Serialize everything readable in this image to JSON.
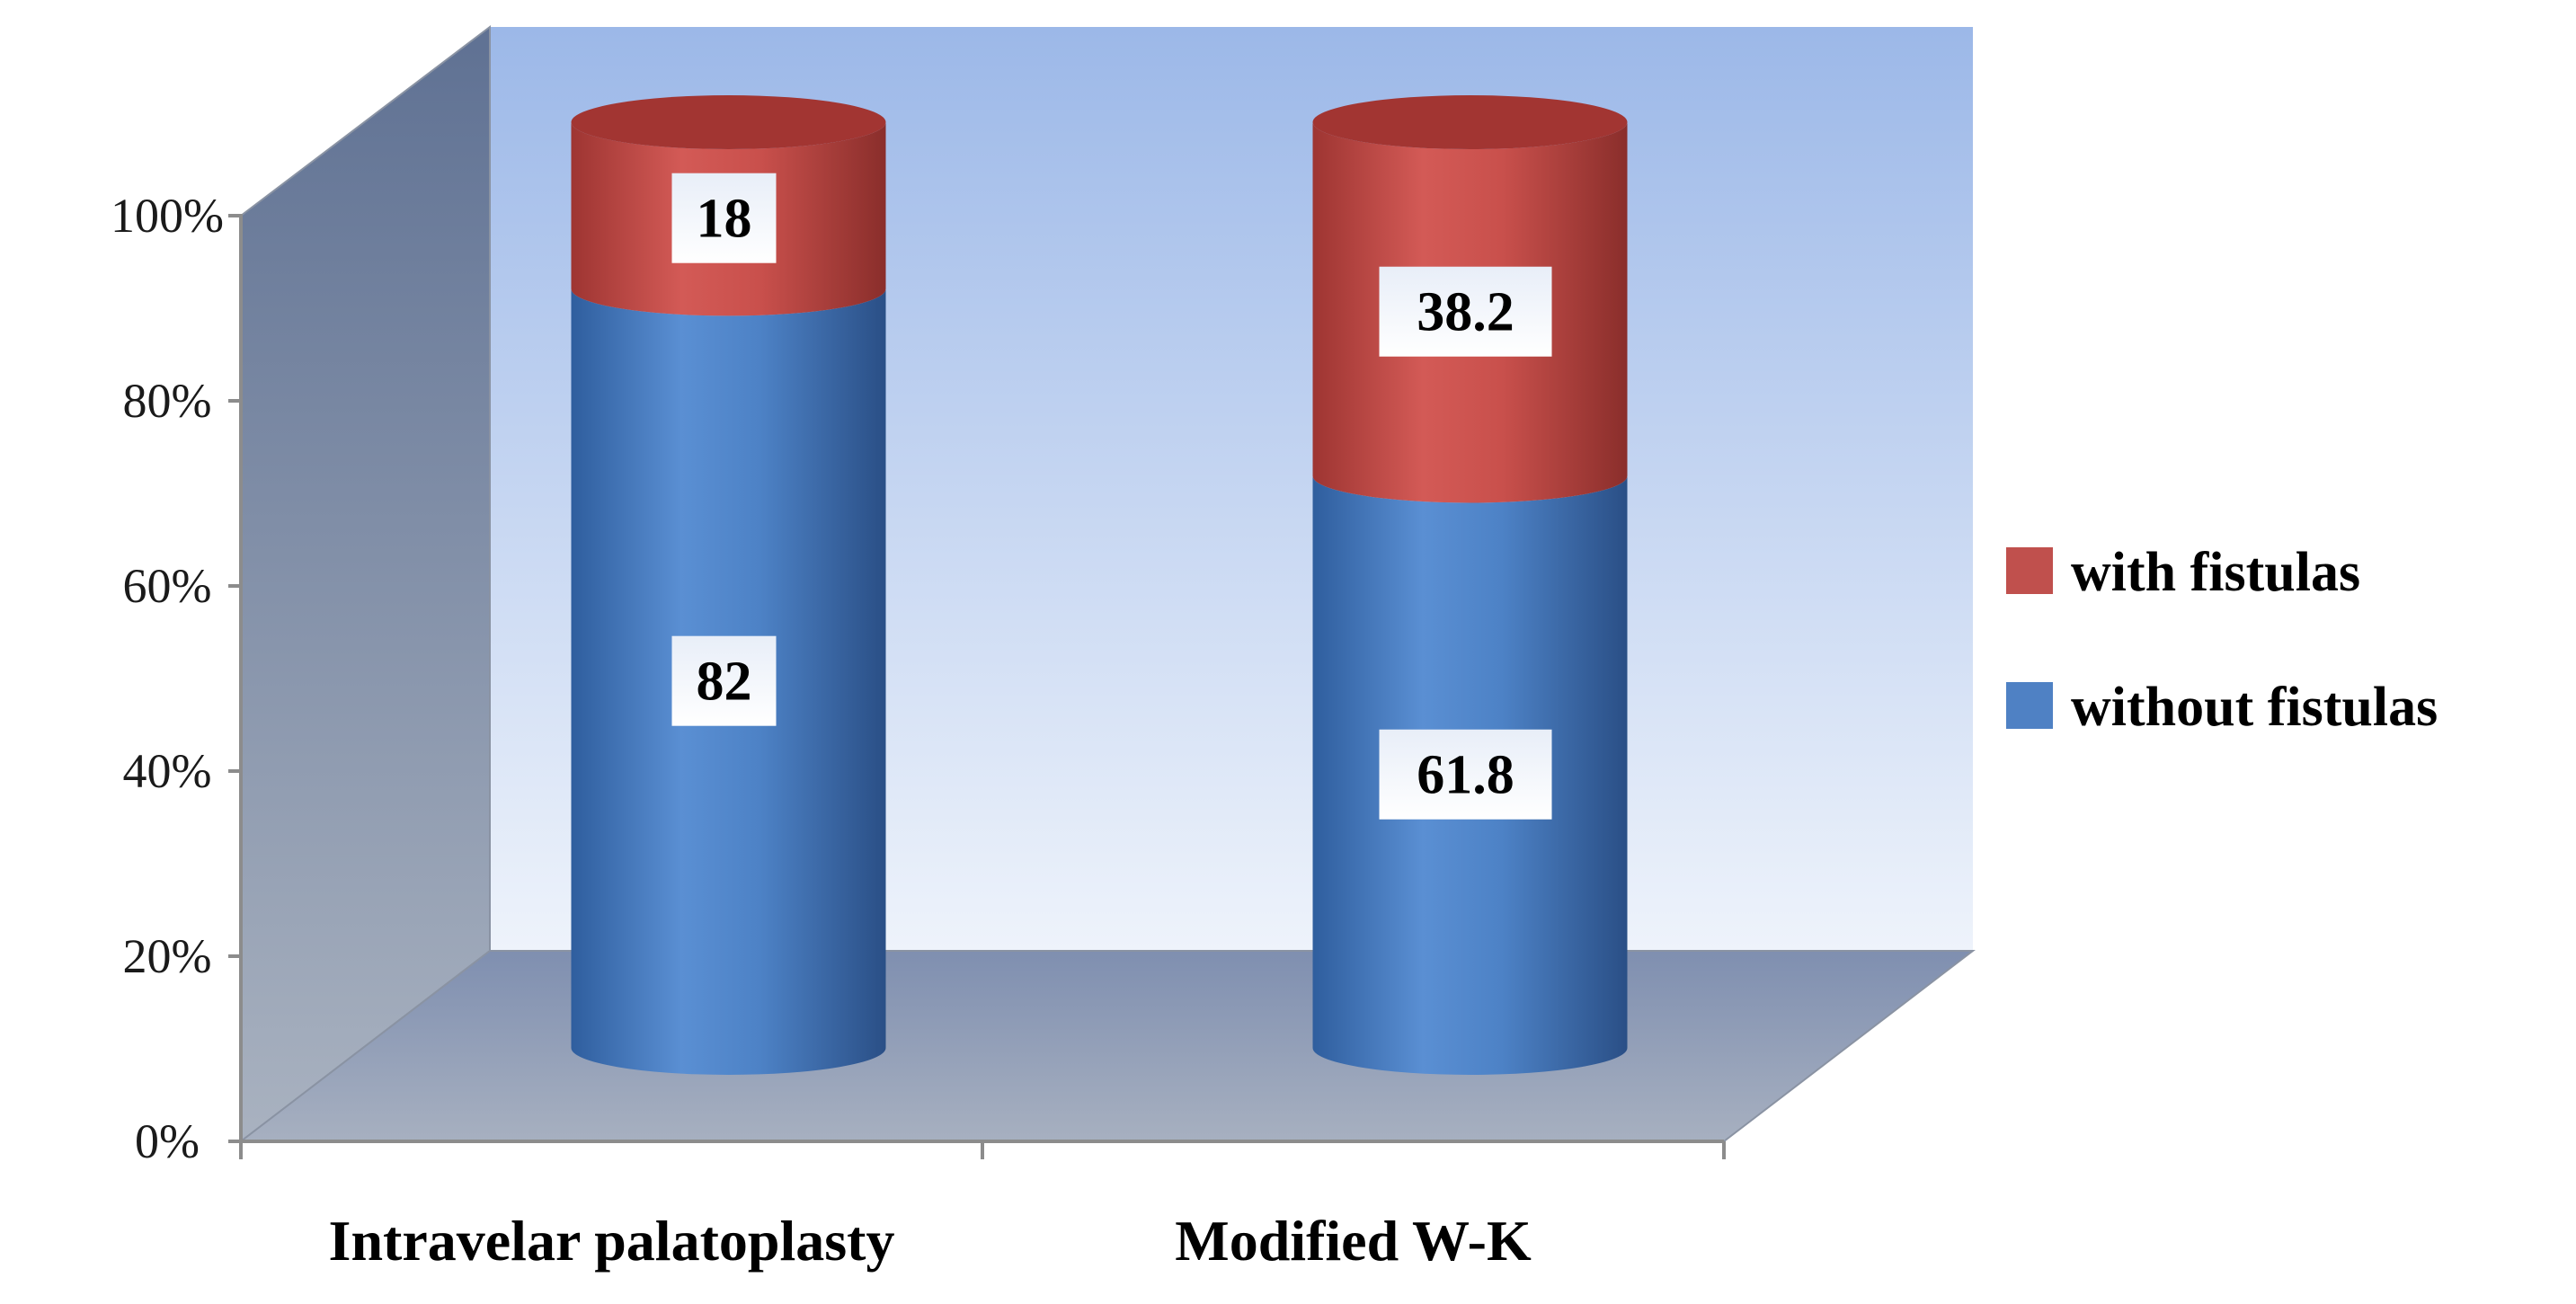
{
  "chart_data": {
    "type": "bar",
    "stacked": true,
    "three_d": true,
    "bar_shape": "cylinder",
    "categories": [
      "Intravelar palatoplasty",
      "Modified W-K"
    ],
    "series": [
      {
        "name": "without fistulas",
        "values": [
          82,
          61.8
        ],
        "labels": [
          "82",
          "61.8"
        ],
        "color": "#4f81c4"
      },
      {
        "name": "with fistulas",
        "values": [
          18,
          38.2
        ],
        "labels": [
          "18",
          "38.2"
        ],
        "color": "#c0504d"
      }
    ],
    "y_ticks": [
      "0%",
      "20%",
      "40%",
      "60%",
      "80%",
      "100%"
    ],
    "ylim": [
      0,
      100
    ],
    "legend_position": "right",
    "grid": false
  }
}
